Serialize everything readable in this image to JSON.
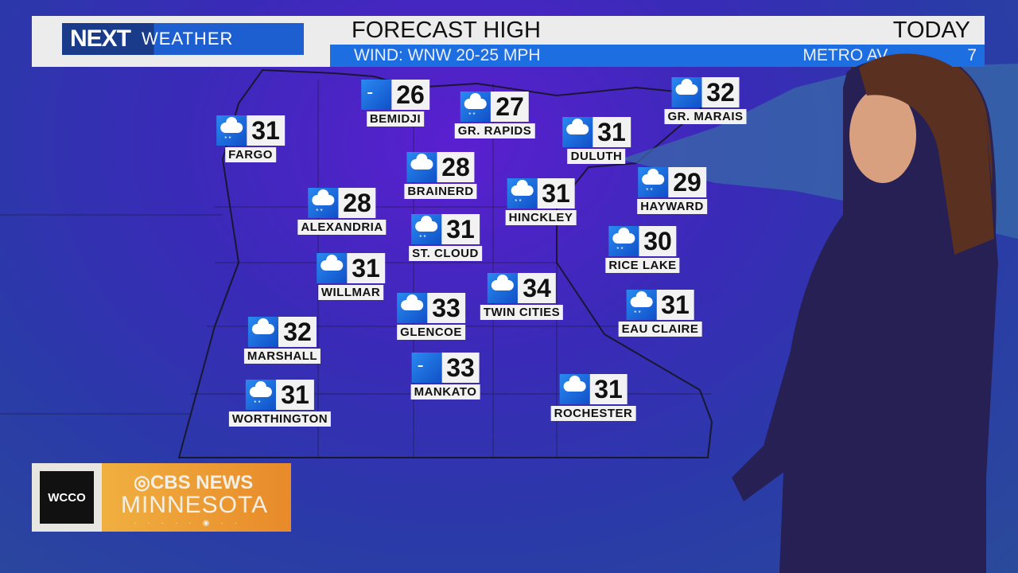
{
  "header": {
    "brand_next": "NEXT",
    "brand_weather": "WEATHER",
    "title": "FORECAST HIGH",
    "day": "TODAY",
    "wind": "WIND: WNW 20-25 MPH",
    "metro_partial": "METRO AV",
    "metro_tail": "7"
  },
  "colors": {
    "header_blue": "#1d6ee0",
    "logo_dark": "#1a3a8a",
    "map_purple": "#5a1fd0",
    "cbs_orange": "#e88a2a"
  },
  "cities": [
    {
      "name": "FARGO",
      "temp": "31",
      "icon": "snow-cloud-icon"
    },
    {
      "name": "BEMIDJI",
      "temp": "26",
      "icon": "wind-icon"
    },
    {
      "name": "GR. RAPIDS",
      "temp": "27",
      "icon": "snow-cloud-icon"
    },
    {
      "name": "DULUTH",
      "temp": "31",
      "icon": "cloud-icon"
    },
    {
      "name": "GR. MARAIS",
      "temp": "32",
      "icon": "cloud-icon"
    },
    {
      "name": "BRAINERD",
      "temp": "28",
      "icon": "cloud-icon"
    },
    {
      "name": "ALEXANDRIA",
      "temp": "28",
      "icon": "snow-cloud-icon"
    },
    {
      "name": "HINCKLEY",
      "temp": "31",
      "icon": "snow-cloud-icon"
    },
    {
      "name": "HAYWARD",
      "temp": "29",
      "icon": "snow-cloud-icon"
    },
    {
      "name": "ST. CLOUD",
      "temp": "31",
      "icon": "snow-cloud-icon"
    },
    {
      "name": "RICE LAKE",
      "temp": "30",
      "icon": "snow-cloud-icon"
    },
    {
      "name": "WILLMAR",
      "temp": "31",
      "icon": "cloud-icon"
    },
    {
      "name": "TWIN CITIES",
      "temp": "34",
      "icon": "cloud-icon"
    },
    {
      "name": "GLENCOE",
      "temp": "33",
      "icon": "cloud-icon"
    },
    {
      "name": "EAU CLAIRE",
      "temp": "31",
      "icon": "snow-cloud-icon"
    },
    {
      "name": "MARSHALL",
      "temp": "32",
      "icon": "cloud-icon"
    },
    {
      "name": "MANKATO",
      "temp": "33",
      "icon": "wind-icon"
    },
    {
      "name": "ROCHESTER",
      "temp": "31",
      "icon": "cloud-icon"
    },
    {
      "name": "WORTHINGTON",
      "temp": "31",
      "icon": "snow-cloud-icon"
    }
  ],
  "bug": {
    "station": "WCCO",
    "network": "CBS NEWS",
    "region": "MINNESOTA"
  }
}
